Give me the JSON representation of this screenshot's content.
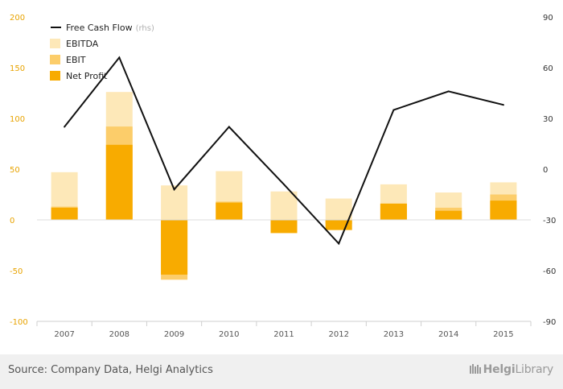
{
  "chart_data": {
    "type": "bar+line",
    "categories": [
      "2007",
      "2008",
      "2009",
      "2010",
      "2011",
      "2012",
      "2013",
      "2014",
      "2015"
    ],
    "series": [
      {
        "name": "EBITDA",
        "kind": "bar",
        "axis": "left",
        "color": "#fde8b8",
        "values": [
          47,
          126,
          34,
          48,
          28,
          21,
          35,
          27,
          37
        ]
      },
      {
        "name": "EBIT",
        "kind": "bar",
        "axis": "left",
        "color": "#fccd6a",
        "values": [
          13,
          92,
          -59,
          18,
          0,
          -4,
          16,
          12,
          25
        ]
      },
      {
        "name": "Net Profit",
        "kind": "bar",
        "axis": "left",
        "color": "#f8ab00",
        "values": [
          12,
          74,
          -54,
          17,
          -13,
          -10,
          16,
          9,
          19
        ]
      },
      {
        "name": "Free Cash Flow",
        "kind": "line",
        "axis": "right",
        "color": "#111111",
        "values": [
          25,
          66,
          -12,
          25,
          -9,
          -44,
          35,
          46,
          38
        ]
      }
    ],
    "legend": [
      {
        "name": "Free Cash Flow",
        "note": "(rhs)",
        "marker": "line",
        "color": "#111111"
      },
      {
        "name": "EBITDA",
        "note": "",
        "marker": "box",
        "color": "#fde8b8"
      },
      {
        "name": "EBIT",
        "note": "",
        "marker": "box",
        "color": "#fccd6a"
      },
      {
        "name": "Net Profit",
        "note": "",
        "marker": "box",
        "color": "#f8ab00"
      }
    ],
    "left_axis": {
      "ylim": [
        -100,
        200
      ],
      "ticks": [
        200,
        150,
        100,
        50,
        0,
        -50,
        -100
      ],
      "tick_labels": [
        "200",
        "150",
        "100",
        "50",
        "0",
        "-50",
        "-100"
      ],
      "color": "#e8a300"
    },
    "right_axis": {
      "ylim": [
        -90,
        90
      ],
      "ticks": [
        90,
        60,
        30,
        0,
        -30,
        -60,
        -90
      ],
      "tick_labels": [
        "90",
        "60",
        "30",
        "0",
        "-30",
        "-60",
        "-90"
      ],
      "color": "#333333"
    },
    "legend_position": "top-left",
    "grid": false
  },
  "footer": {
    "source": "Source: Company Data, Helgi Analytics",
    "brand_bold": "Helgi",
    "brand_rest": "Library"
  }
}
